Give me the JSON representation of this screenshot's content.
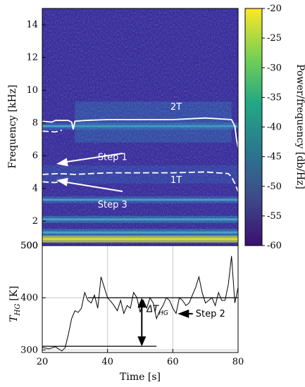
{
  "chart_data": [
    {
      "type": "heatmap",
      "xlabel": "",
      "ylabel": "Frequency [kHz]",
      "xlim": [
        20,
        80
      ],
      "ylim": [
        0.5,
        15
      ],
      "y_ticks": [
        500,
        2,
        4,
        6,
        8,
        10,
        12,
        14
      ],
      "y_tick_labels": [
        "500",
        "2",
        "4",
        "6",
        "8",
        "10",
        "12",
        "14"
      ],
      "colorbar": {
        "label": "Power/frequency [db/Hz]",
        "range": [
          -60,
          -20
        ],
        "ticks": [
          -20,
          -25,
          -30,
          -35,
          -40,
          -45,
          -50,
          -55,
          -60
        ],
        "tick_labels": [
          "-20",
          "-25",
          "-30",
          "-35",
          "-40",
          "-45",
          "-50",
          "-55",
          "-60"
        ],
        "colormap": [
          "#3b0f70",
          "#3e4a89",
          "#2a788e",
          "#22a884",
          "#7ad151",
          "#fde725"
        ]
      },
      "series": [
        {
          "name": "2T",
          "line_style": "solid",
          "color": "#ffffff",
          "x": [
            20,
            23,
            24,
            28,
            29,
            29.5,
            30,
            33,
            40,
            50,
            60,
            70,
            78,
            79,
            79.5,
            80
          ],
          "y": [
            8.1,
            8.05,
            8.15,
            8.15,
            8.05,
            7.6,
            8.1,
            8.15,
            8.2,
            8.2,
            8.2,
            8.3,
            8.2,
            7.8,
            7.0,
            6.5
          ]
        },
        {
          "name": "1T",
          "line_style": "dashed",
          "color": "#ffffff",
          "x": [
            20,
            25,
            30,
            35,
            40,
            50,
            60,
            70,
            77,
            78,
            79,
            80
          ],
          "y": [
            4.85,
            4.9,
            4.85,
            4.9,
            4.95,
            4.95,
            4.95,
            5.0,
            4.9,
            4.7,
            4.3,
            3.8
          ]
        },
        {
          "name": "",
          "line_style": "dashed",
          "color": "#ffffff",
          "x": [
            20,
            24,
            26
          ],
          "y": [
            4.4,
            4.35,
            4.45
          ]
        },
        {
          "name": "",
          "line_style": "dashed",
          "color": "#ffffff",
          "x": [
            20,
            24,
            26
          ],
          "y": [
            7.5,
            7.45,
            7.55
          ]
        }
      ],
      "bands": [
        {
          "y": 0.9,
          "strength": 1.0
        },
        {
          "y": 1.3,
          "strength": 0.6
        },
        {
          "y": 2.1,
          "strength": 0.55
        },
        {
          "y": 3.3,
          "strength": 0.45
        },
        {
          "y": 7.8,
          "strength": 0.5
        }
      ],
      "annotations": [
        {
          "text": "Step 1",
          "x": 37,
          "y": 5.9
        },
        {
          "text": "Step 3",
          "x": 37,
          "y": 3.0
        },
        {
          "text": "2T",
          "x": 61,
          "y": 8.8
        },
        {
          "text": "1T",
          "x": 61,
          "y": 4.5
        }
      ]
    },
    {
      "type": "line",
      "xlabel": "Time [s]",
      "ylabel": "T_HG [K]",
      "xlim": [
        20,
        80
      ],
      "ylim": [
        295,
        500
      ],
      "x_ticks": [
        20,
        40,
        60,
        80
      ],
      "y_ticks": [
        300,
        400,
        500
      ],
      "grid": true,
      "series": [
        {
          "name": "",
          "x": [
            20,
            22,
            24,
            26,
            27,
            28,
            29,
            30,
            31,
            32,
            33,
            34,
            35,
            36,
            37,
            38,
            39,
            40,
            41,
            42,
            43,
            44,
            45,
            46,
            47,
            48,
            49,
            50,
            51,
            52,
            53,
            54,
            55,
            56,
            57,
            58,
            59,
            60,
            61,
            62,
            63,
            64,
            65,
            66,
            67,
            68,
            69,
            70,
            71,
            72,
            73,
            74,
            75,
            76,
            77,
            78,
            79,
            80
          ],
          "y": [
            305,
            302,
            306,
            298,
            304,
            330,
            360,
            375,
            372,
            380,
            410,
            395,
            390,
            405,
            380,
            440,
            420,
            400,
            393,
            385,
            375,
            395,
            370,
            385,
            380,
            410,
            400,
            372,
            395,
            380,
            400,
            390,
            360,
            375,
            385,
            400,
            395,
            380,
            370,
            400,
            395,
            385,
            390,
            405,
            420,
            440,
            410,
            390,
            395,
            400,
            385,
            410,
            395,
            395,
            425,
            480,
            390,
            420
          ]
        }
      ],
      "hlines": [
        {
          "y": 400,
          "x": [
            34,
            80
          ]
        },
        {
          "y": 307,
          "x": [
            20,
            55
          ]
        }
      ],
      "annotations": [
        {
          "text": "ΔT",
          "sub": "HG",
          "x": 52,
          "y": 370
        },
        {
          "text": "Step 2",
          "x": 67,
          "y": 364
        }
      ]
    }
  ],
  "ui": {
    "bottom_ylabel_main": "T",
    "bottom_ylabel_sub": "HG",
    "bottom_ylabel_unit": "[K]",
    "delta_main": "ΔT",
    "delta_sub": "HG"
  }
}
